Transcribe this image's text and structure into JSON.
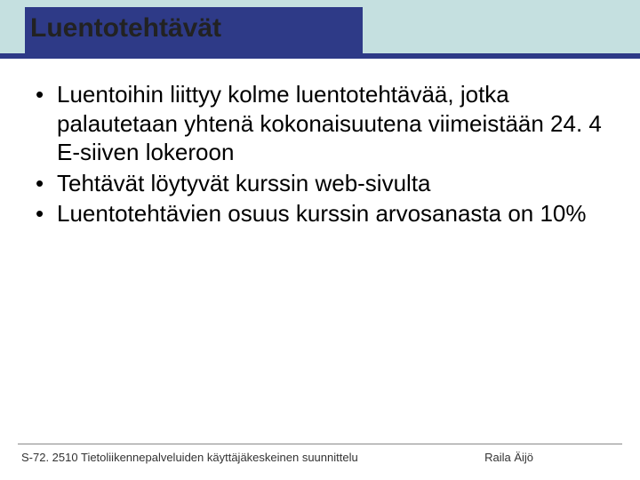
{
  "header": {
    "title": "Luentotehtävät",
    "band_color": "#c5e0e0",
    "bar_color": "#2e3a87",
    "divider_color": "#2e3a87",
    "title_fontsize": 30,
    "title_color": "#222222"
  },
  "bullets": {
    "items": [
      "Luentoihin liittyy kolme luentotehtävää, jotka palautetaan yhtenä kokonaisuutena viimeistään 24. 4 E-siiven lokeroon",
      "Tehtävät löytyvät kurssin web-sivulta",
      "Luentotehtävien osuus kurssin arvosanasta on 10%"
    ],
    "fontsize": 26,
    "color": "#000000"
  },
  "footer": {
    "left": "S-72. 2510 Tietoliikennepalveluiden käyttäjäkeskeinen suunnittelu",
    "right": "Raila Äijö",
    "fontsize": 13,
    "line_color": "#888888"
  },
  "background_color": "#ffffff"
}
